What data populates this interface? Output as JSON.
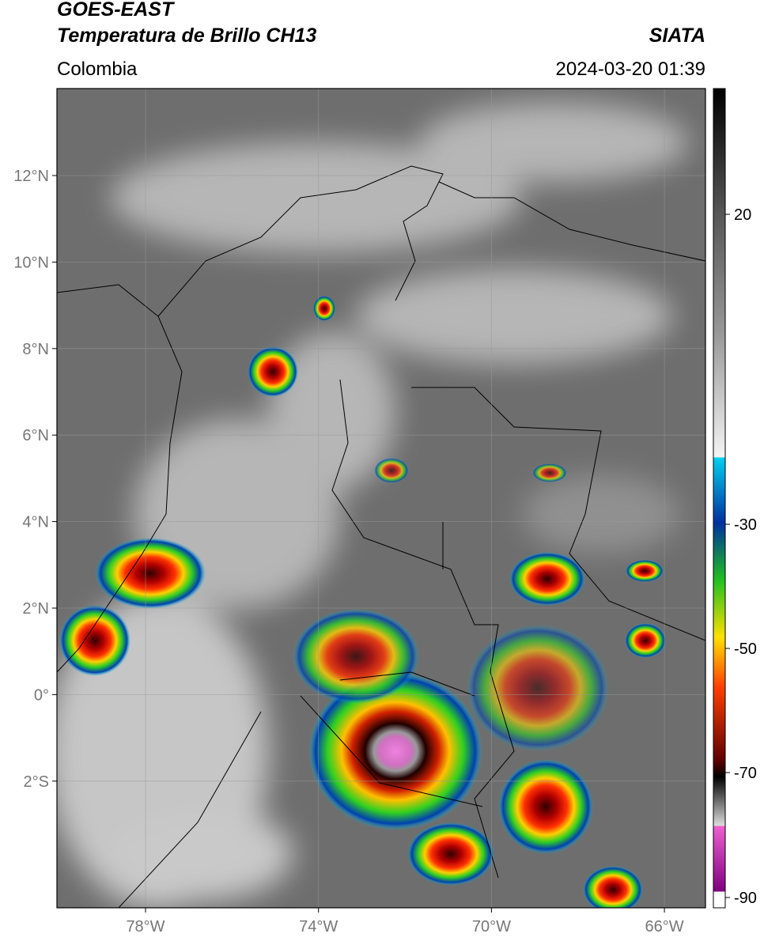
{
  "header": {
    "title_line1": "GOES-EAST",
    "title_line2": "Temperatura de Brillo CH13",
    "source": "SIATA",
    "region": "Colombia",
    "datetime": "2024-03-20 01:39"
  },
  "map": {
    "lat_labels": [
      "12°N",
      "10°N",
      "8°N",
      "6°N",
      "4°N",
      "2°N",
      "0°",
      "2°S"
    ],
    "lon_labels": [
      "78°W",
      "74°W",
      "70°W",
      "66°W"
    ]
  },
  "colorbar": {
    "labels": [
      "20",
      "-30",
      "-50",
      "-70",
      "-90"
    ]
  }
}
